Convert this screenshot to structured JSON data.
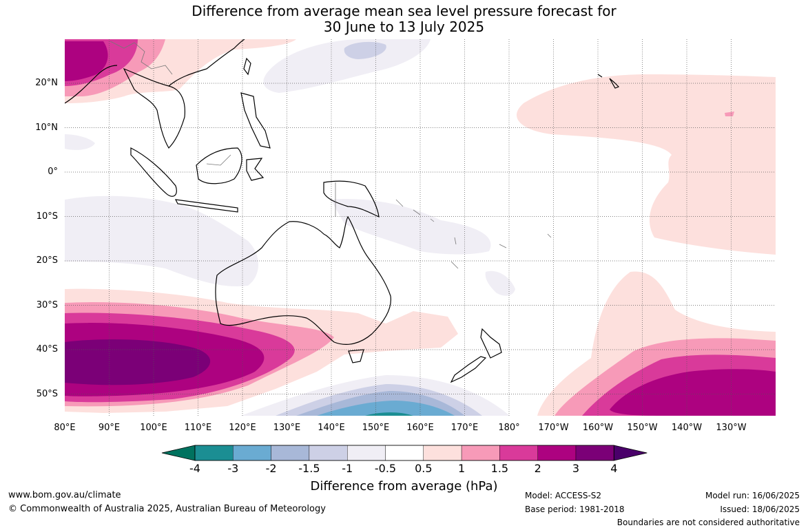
{
  "title": {
    "line1": "Difference from average mean sea level pressure forecast for",
    "line2": "30 June to 13 July 2025"
  },
  "lat_labels": [
    "20°N",
    "10°N",
    "0°",
    "10°S",
    "20°S",
    "30°S",
    "40°S",
    "50°S"
  ],
  "lon_labels": [
    "80°E",
    "90°E",
    "100°E",
    "110°E",
    "120°E",
    "130°E",
    "140°E",
    "150°E",
    "160°E",
    "170°E",
    "180°",
    "170°W",
    "160°W",
    "150°W",
    "140°W",
    "130°W"
  ],
  "colorbar": {
    "labels": [
      "-4",
      "-3",
      "-2",
      "-1.5",
      "-1",
      "-0.5",
      "0.5",
      "1",
      "1.5",
      "2",
      "3",
      "4"
    ],
    "colors": [
      "#00725f",
      "#1b8e93",
      "#6aabd2",
      "#a8b8d8",
      "#cdd0e6",
      "#f0eef5",
      "#ffffff",
      "#fde0dd",
      "#f79ab8",
      "#d93a9a",
      "#ad0280",
      "#7b0077",
      "#4a006a"
    ],
    "title": "Difference from average (hPa)"
  },
  "footer": {
    "url": "www.bom.gov.au/climate",
    "copyright": "© Commonwealth of Australia 2025, Australian Bureau of Meteorology",
    "model": "Model: ACCESS-S2",
    "base_period": "Base period: 1981-2018",
    "model_run": "Model run: 16/06/2025",
    "issued": "Issued: 18/06/2025",
    "disclaimer": "Boundaries are not considered authoritative"
  }
}
